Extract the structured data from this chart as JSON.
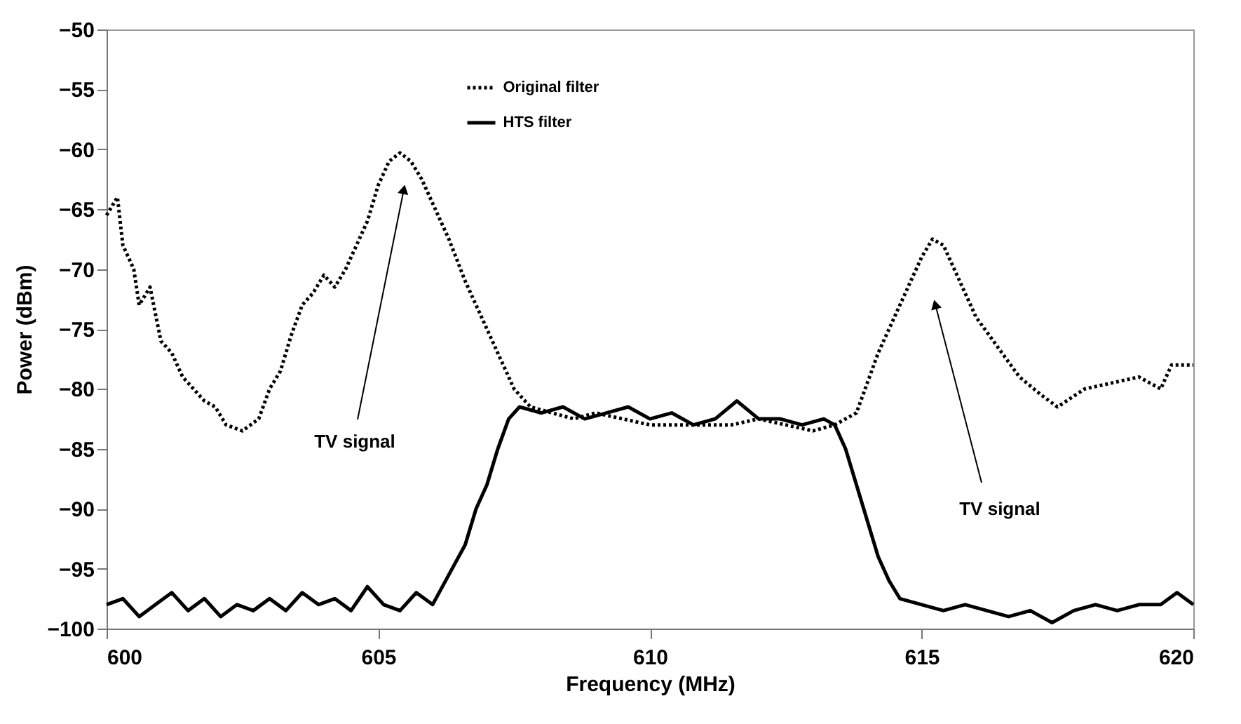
{
  "chart_data": {
    "type": "line",
    "xlabel": "Frequency (MHz)",
    "ylabel": "Power (dBm)",
    "xlim": [
      600,
      620
    ],
    "xticks": [
      600,
      605,
      610,
      615,
      620
    ],
    "ylim": [
      -100,
      -50
    ],
    "yticks": [
      -100,
      -95,
      -90,
      -85,
      -80,
      -75,
      -70,
      -65,
      -60,
      -55,
      -50
    ],
    "grid": false,
    "legend": "top",
    "marker": "none",
    "annotations": [
      "TV signal",
      "TV signal"
    ],
    "series": [
      {
        "name": "Original filter",
        "color": "#000000",
        "line_style": "dotted",
        "x": [
          600,
          600.2,
          600.3,
          600.5,
          600.6,
          600.8,
          601,
          601.2,
          601.4,
          601.6,
          601.8,
          602,
          602.2,
          602.5,
          602.8,
          603,
          603.2,
          603.4,
          603.6,
          603.8,
          604,
          604.2,
          604.4,
          604.6,
          604.8,
          605,
          605.2,
          605.4,
          605.6,
          605.8,
          606,
          606.3,
          606.6,
          606.9,
          607.2,
          607.5,
          607.8,
          608.2,
          608.6,
          609,
          609.5,
          610,
          610.5,
          611,
          611.5,
          612,
          612.5,
          613,
          613.4,
          613.8,
          614,
          614.2,
          614.5,
          614.8,
          615,
          615.2,
          615.4,
          615.6,
          615.8,
          616,
          616.4,
          616.8,
          617.2,
          617.5,
          618,
          618.5,
          619,
          619.4,
          619.6,
          620
        ],
        "values": [
          -65.5,
          -64,
          -68,
          -70,
          -73,
          -71.5,
          -76,
          -77,
          -79,
          -80,
          -81,
          -81.5,
          -83,
          -83.5,
          -82.5,
          -80,
          -78.5,
          -75.5,
          -73,
          -72,
          -70.5,
          -71.5,
          -70,
          -68,
          -66,
          -63,
          -61,
          -60.3,
          -61,
          -62.5,
          -64.5,
          -67.5,
          -71,
          -74,
          -77,
          -80,
          -81.5,
          -82,
          -82.5,
          -82,
          -82.5,
          -83,
          -83,
          -83,
          -83,
          -82.5,
          -83,
          -83.5,
          -83,
          -82,
          -79.5,
          -77,
          -74,
          -71,
          -69,
          -67.5,
          -68,
          -70,
          -72,
          -74,
          -76.5,
          -79,
          -80.5,
          -81.5,
          -80,
          -79.5,
          -79,
          -80,
          -78,
          -78
        ]
      },
      {
        "name": "HTS filter",
        "color": "#000000",
        "line_style": "solid",
        "x": [
          600,
          600.3,
          600.6,
          600.9,
          601.2,
          601.5,
          601.8,
          602.1,
          602.4,
          602.7,
          603,
          603.3,
          603.6,
          603.9,
          604.2,
          604.5,
          604.8,
          605.1,
          605.4,
          605.7,
          606,
          606.3,
          606.6,
          606.8,
          607,
          607.2,
          607.4,
          607.6,
          608,
          608.4,
          608.8,
          609.2,
          609.6,
          610,
          610.4,
          610.8,
          611.2,
          611.6,
          612,
          612.4,
          612.8,
          613.2,
          613.4,
          613.6,
          613.8,
          614,
          614.2,
          614.4,
          614.6,
          615,
          615.4,
          615.8,
          616.2,
          616.6,
          617,
          617.4,
          617.8,
          618.2,
          618.6,
          619,
          619.4,
          619.7,
          620
        ],
        "values": [
          -98,
          -97.5,
          -99,
          -98,
          -97,
          -98.5,
          -97.5,
          -99,
          -98,
          -98.5,
          -97.5,
          -98.5,
          -97,
          -98,
          -97.5,
          -98.5,
          -96.5,
          -98,
          -98.5,
          -97,
          -98,
          -95.5,
          -93,
          -90,
          -88,
          -85,
          -82.5,
          -81.5,
          -82,
          -81.5,
          -82.5,
          -82,
          -81.5,
          -82.5,
          -82,
          -83,
          -82.5,
          -81,
          -82.5,
          -82.5,
          -83,
          -82.5,
          -83,
          -85,
          -88,
          -91,
          -94,
          -96,
          -97.5,
          -98,
          -98.5,
          -98,
          -98.5,
          -99,
          -98.5,
          -99.5,
          -98.5,
          -98,
          -98.5,
          -98,
          -98,
          -97,
          -98
        ]
      }
    ]
  }
}
